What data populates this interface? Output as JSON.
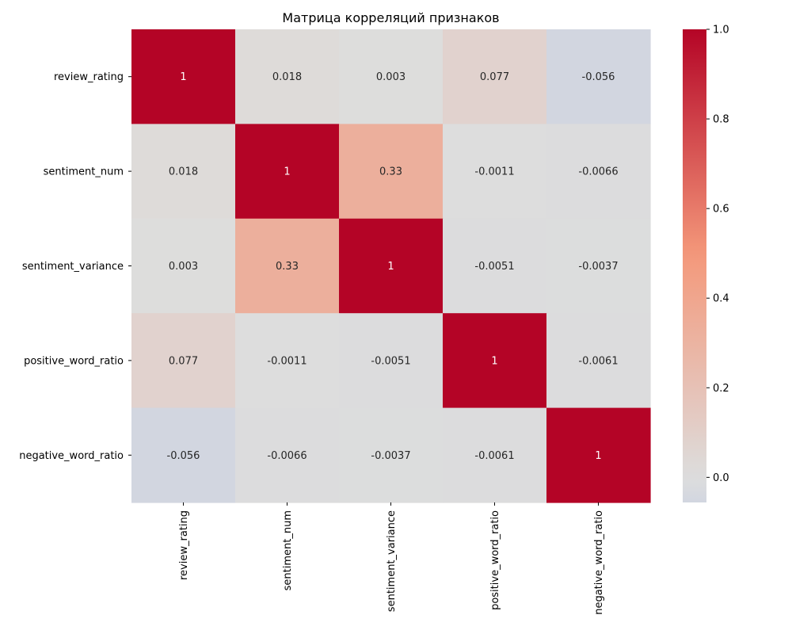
{
  "chart_data": {
    "type": "heatmap",
    "title": "Матрица корреляций признаков",
    "x_labels": [
      "review_rating",
      "sentiment_num",
      "sentiment_variance",
      "positive_word_ratio",
      "negative_word_ratio"
    ],
    "y_labels": [
      "review_rating",
      "sentiment_num",
      "sentiment_variance",
      "positive_word_ratio",
      "negative_word_ratio"
    ],
    "values": [
      [
        1,
        0.018,
        0.003,
        0.077,
        -0.056
      ],
      [
        0.018,
        1,
        0.33,
        -0.0011,
        -0.0066
      ],
      [
        0.003,
        0.33,
        1,
        -0.0051,
        -0.0037
      ],
      [
        0.077,
        -0.0011,
        -0.0051,
        1,
        -0.0061
      ],
      [
        -0.056,
        -0.0066,
        -0.0037,
        -0.0061,
        1
      ]
    ],
    "cell_labels": [
      [
        "1",
        "0.018",
        "0.003",
        "0.077",
        "-0.056"
      ],
      [
        "0.018",
        "1",
        "0.33",
        "-0.0011",
        "-0.0066"
      ],
      [
        "0.003",
        "0.33",
        "1",
        "-0.0051",
        "-0.0037"
      ],
      [
        "0.077",
        "-0.0011",
        "-0.0051",
        "1",
        "-0.0061"
      ],
      [
        "-0.056",
        "-0.0066",
        "-0.0037",
        "-0.0061",
        "1"
      ]
    ],
    "colormap": "coolwarm",
    "color_center": 0,
    "vmin": -0.056,
    "vmax": 1,
    "colorbar": {
      "ticks": [
        0.0,
        0.2,
        0.4,
        0.6,
        0.8,
        1.0
      ],
      "tick_labels": [
        "0.0",
        "0.2",
        "0.4",
        "0.6",
        "0.8",
        "1.0"
      ]
    }
  }
}
